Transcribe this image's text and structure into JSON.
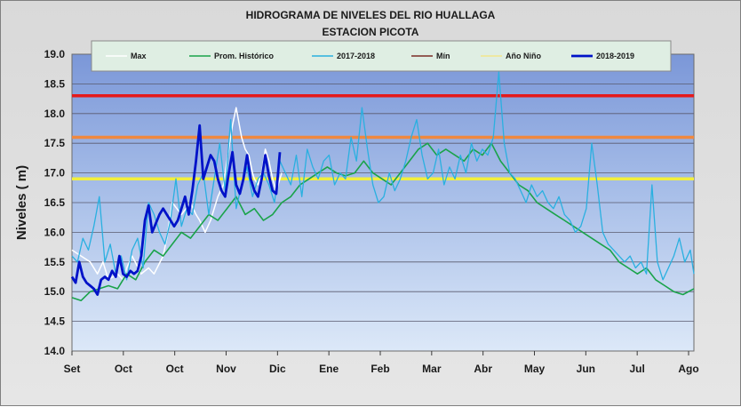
{
  "chart_data": {
    "type": "line",
    "title": "HIDROGRAMA DE NIVELES DEL RIO HUALLAGA",
    "subtitle": "ESTACION PICOTA",
    "xlabel": "",
    "ylabel": "Niveles ( m)",
    "ylim": [
      14.0,
      19.0
    ],
    "yticks": [
      "14.0",
      "14.5",
      "15.0",
      "15.5",
      "16.0",
      "16.5",
      "17.0",
      "17.5",
      "18.0",
      "18.5",
      "19.0"
    ],
    "x_tick_labels": [
      "Set",
      "Oct",
      "Oct",
      "Nov",
      "Dic",
      "Ene",
      "Feb",
      "Mar",
      "Abr",
      "May",
      "Jun",
      "Jul",
      "Ago"
    ],
    "x_unit": "day of hydrological year (starts in September)",
    "xlim": [
      0,
      341
    ],
    "grid": true,
    "legend_position": "top",
    "thresholds": [
      {
        "name": "Max",
        "value": 18.3,
        "color": "#e41a1c"
      },
      {
        "name": "Año Niño",
        "value": 17.6,
        "color": "#f0883e"
      },
      {
        "name": "Min",
        "value": 16.9,
        "color": "#f2ef3c"
      }
    ],
    "series": [
      {
        "name": "Max",
        "color": "#ffffff",
        "width": 1.5,
        "x": [
          0,
          5,
          10,
          14,
          17,
          20,
          25,
          28,
          30,
          33,
          38,
          42,
          45,
          50,
          52,
          55,
          60,
          65,
          68,
          70,
          73,
          76,
          78,
          80,
          83,
          85,
          88,
          90,
          93,
          95,
          97,
          99,
          100,
          102,
          104,
          106,
          108,
          110,
          112,
          115
        ],
        "y": [
          15.7,
          15.6,
          15.5,
          15.3,
          15.5,
          15.2,
          15.3,
          15.2,
          15.4,
          15.6,
          15.3,
          15.4,
          15.3,
          15.6,
          15.9,
          16.5,
          16.3,
          16.5,
          16.3,
          16.2,
          16.0,
          16.2,
          16.4,
          16.6,
          16.8,
          17.2,
          17.8,
          18.1,
          17.6,
          17.4,
          17.3,
          17.0,
          16.9,
          16.8,
          17.0,
          17.4,
          17.2,
          16.9,
          16.7,
          17.0
        ]
      },
      {
        "name": "Prom. Histórico",
        "color": "#1aa34a",
        "width": 1.6,
        "x": [
          0,
          5,
          10,
          15,
          20,
          25,
          30,
          35,
          40,
          45,
          50,
          55,
          60,
          65,
          70,
          75,
          80,
          85,
          90,
          95,
          100,
          105,
          110,
          115,
          120,
          125,
          130,
          135,
          140,
          145,
          150,
          155,
          160,
          165,
          170,
          175,
          180,
          185,
          190,
          195,
          200,
          205,
          210,
          215,
          220,
          225,
          230,
          235,
          240,
          245,
          250,
          255,
          260,
          265,
          270,
          275,
          280,
          285,
          290,
          295,
          300,
          305,
          310,
          315,
          320,
          325,
          330,
          335,
          341
        ],
        "y": [
          14.9,
          14.85,
          15.0,
          15.05,
          15.1,
          15.05,
          15.3,
          15.2,
          15.5,
          15.7,
          15.6,
          15.8,
          16.0,
          15.9,
          16.1,
          16.3,
          16.2,
          16.4,
          16.6,
          16.3,
          16.4,
          16.2,
          16.3,
          16.5,
          16.6,
          16.8,
          16.9,
          17.0,
          17.1,
          17.0,
          16.95,
          17.0,
          17.2,
          17.0,
          16.9,
          16.8,
          17.0,
          17.2,
          17.4,
          17.5,
          17.3,
          17.4,
          17.3,
          17.2,
          17.4,
          17.3,
          17.5,
          17.2,
          17.0,
          16.8,
          16.7,
          16.5,
          16.4,
          16.3,
          16.2,
          16.1,
          16.0,
          15.9,
          15.8,
          15.7,
          15.5,
          15.4,
          15.3,
          15.4,
          15.2,
          15.1,
          15.0,
          14.95,
          15.05
        ]
      },
      {
        "name": "2017-2018",
        "color": "#2ab0e0",
        "width": 1.3,
        "x": [
          0,
          3,
          6,
          9,
          12,
          15,
          18,
          21,
          24,
          27,
          30,
          33,
          36,
          39,
          42,
          45,
          48,
          51,
          54,
          57,
          60,
          63,
          66,
          69,
          72,
          75,
          78,
          81,
          84,
          87,
          90,
          93,
          96,
          99,
          102,
          105,
          108,
          111,
          114,
          117,
          120,
          123,
          126,
          129,
          132,
          135,
          138,
          141,
          144,
          147,
          150,
          153,
          156,
          159,
          162,
          165,
          168,
          171,
          174,
          177,
          180,
          183,
          186,
          189,
          192,
          195,
          198,
          201,
          204,
          207,
          210,
          213,
          216,
          219,
          222,
          225,
          228,
          231,
          234,
          237,
          240,
          243,
          246,
          249,
          252,
          255,
          258,
          261,
          264,
          267,
          270,
          273,
          276,
          279,
          282,
          285,
          288,
          291,
          294,
          297,
          300,
          303,
          306,
          309,
          312,
          315,
          318,
          321,
          324,
          327,
          330,
          333,
          336,
          339,
          341
        ],
        "y": [
          15.6,
          15.5,
          15.9,
          15.7,
          16.1,
          16.6,
          15.5,
          15.8,
          15.3,
          15.6,
          15.2,
          15.7,
          15.9,
          15.4,
          16.5,
          16.3,
          16.0,
          15.8,
          16.2,
          16.9,
          16.1,
          16.4,
          16.3,
          16.8,
          17.0,
          16.3,
          16.9,
          17.5,
          16.7,
          17.9,
          16.4,
          16.8,
          17.1,
          16.6,
          16.9,
          17.0,
          16.8,
          16.5,
          17.2,
          17.0,
          16.8,
          17.3,
          16.6,
          17.4,
          17.1,
          16.9,
          17.2,
          17.3,
          16.8,
          17.0,
          16.9,
          17.6,
          17.2,
          18.1,
          17.4,
          16.8,
          16.5,
          16.6,
          17.0,
          16.7,
          16.9,
          17.2,
          17.6,
          17.9,
          17.3,
          16.9,
          17.0,
          17.4,
          16.8,
          17.1,
          16.9,
          17.3,
          17.0,
          17.5,
          17.2,
          17.4,
          17.3,
          17.6,
          18.7,
          17.5,
          17.0,
          16.9,
          16.7,
          16.5,
          16.8,
          16.6,
          16.7,
          16.5,
          16.4,
          16.6,
          16.3,
          16.2,
          16.0,
          16.1,
          16.4,
          17.5,
          16.8,
          16.0,
          15.8,
          15.7,
          15.6,
          15.5,
          15.6,
          15.4,
          15.5,
          15.3,
          16.8,
          15.5,
          15.2,
          15.4,
          15.6,
          15.9,
          15.5,
          15.7,
          15.3
        ]
      },
      {
        "name": "Mín",
        "color": "#7b2d26",
        "width": 1,
        "x": [],
        "y": []
      },
      {
        "name": "Año Niño",
        "color": "#f2e58c",
        "width": 1,
        "x": [],
        "y": []
      },
      {
        "name": "2018-2019",
        "color": "#0012c8",
        "width": 2.8,
        "x": [
          0,
          2,
          4,
          6,
          8,
          10,
          12,
          14,
          16,
          18,
          20,
          22,
          24,
          26,
          28,
          30,
          32,
          34,
          36,
          38,
          40,
          42,
          44,
          46,
          48,
          50,
          52,
          54,
          56,
          58,
          60,
          62,
          64,
          66,
          68,
          70,
          72,
          74,
          76,
          78,
          80,
          82,
          84,
          86,
          88,
          90,
          92,
          94,
          96,
          98,
          100,
          102,
          104,
          106,
          108,
          110,
          112,
          114
        ],
        "y": [
          15.25,
          15.15,
          15.5,
          15.25,
          15.15,
          15.1,
          15.05,
          14.95,
          15.2,
          15.25,
          15.2,
          15.35,
          15.25,
          15.6,
          15.3,
          15.25,
          15.35,
          15.3,
          15.35,
          15.6,
          16.2,
          16.45,
          16.0,
          16.15,
          16.3,
          16.4,
          16.3,
          16.2,
          16.1,
          16.2,
          16.4,
          16.6,
          16.3,
          16.7,
          17.2,
          17.8,
          16.9,
          17.1,
          17.3,
          17.2,
          16.9,
          16.7,
          16.6,
          17.0,
          17.35,
          16.8,
          16.65,
          16.9,
          17.3,
          16.9,
          16.7,
          16.6,
          16.9,
          17.3,
          16.95,
          16.7,
          16.65,
          17.35
        ]
      }
    ]
  }
}
